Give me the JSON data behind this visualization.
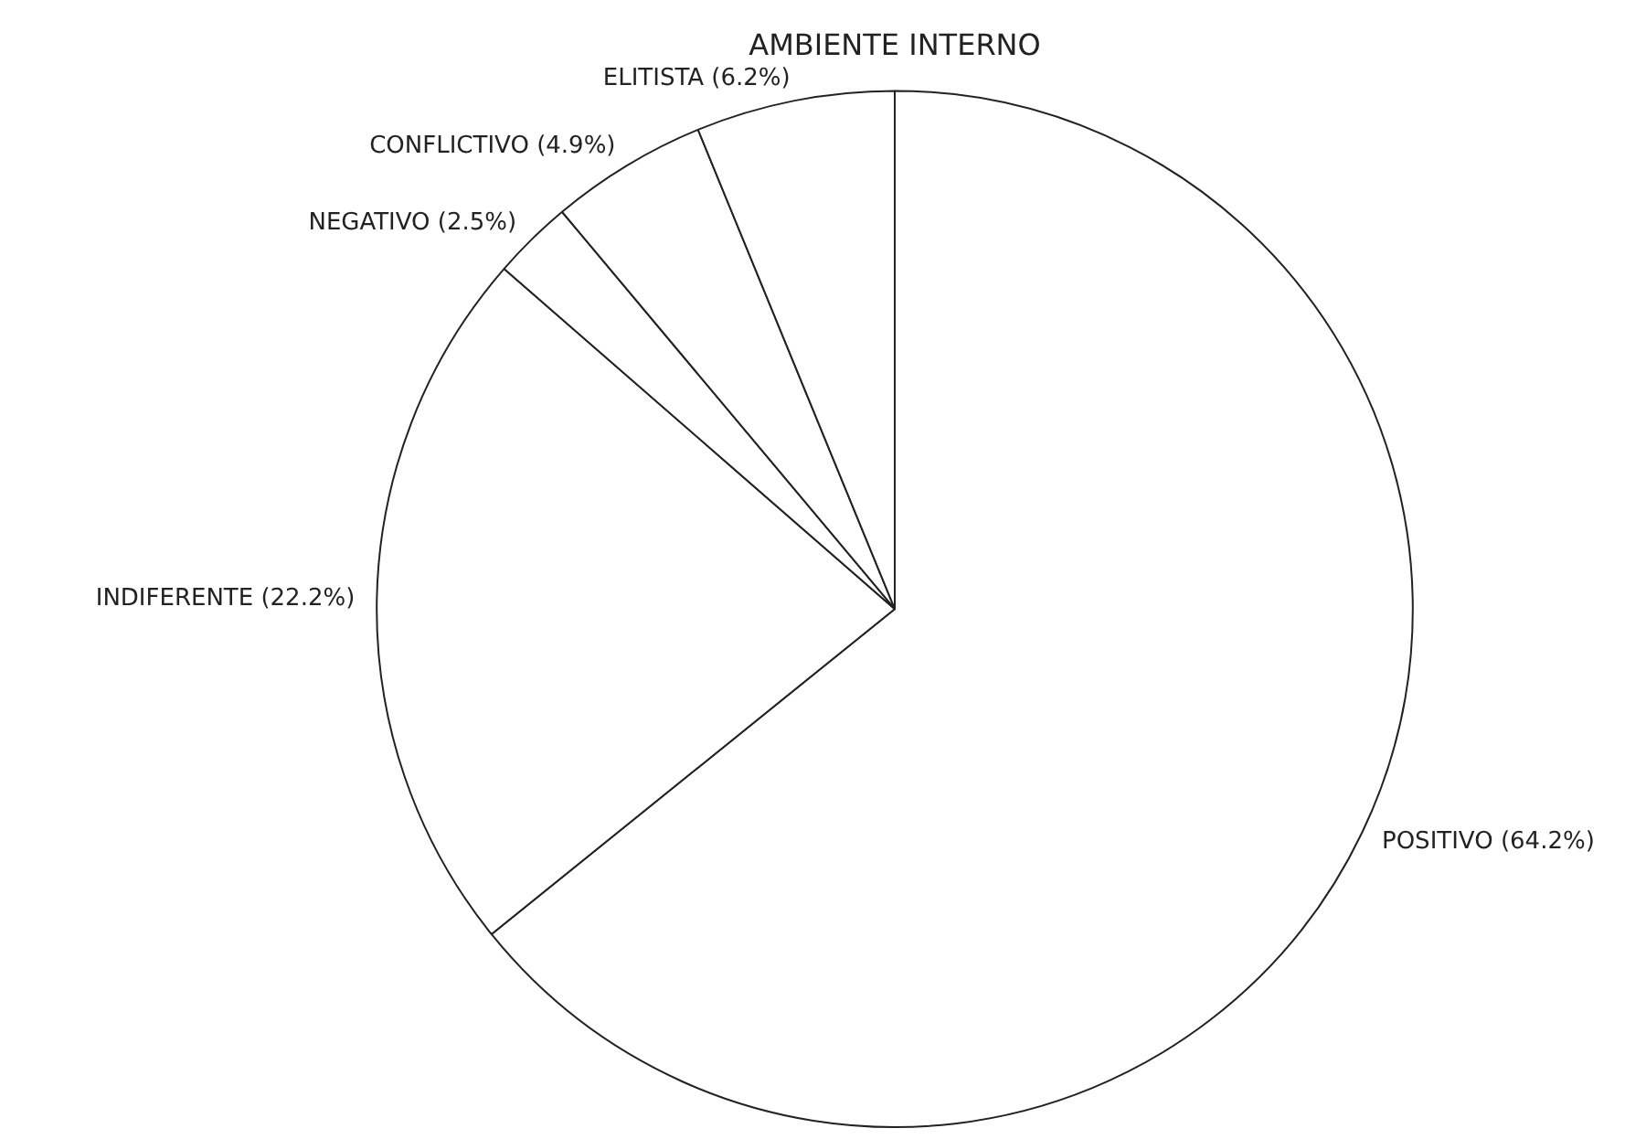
{
  "chart_data": {
    "type": "pie",
    "title": "AMBIENTE INTERNO",
    "categories": [
      "POSITIVO (64.2%)",
      "INDIFERENTE (22.2%)",
      "NEGATIVO (2.5%)",
      "CONFLICTIVO (4.9%)",
      "ELITISTA (6.2%)"
    ],
    "values": [
      64.2,
      22.2,
      2.5,
      4.9,
      6.2
    ],
    "colors": [
      "#ffffff",
      "#ffffff",
      "#ffffff",
      "#ffffff",
      "#ffffff"
    ],
    "legend": false
  }
}
